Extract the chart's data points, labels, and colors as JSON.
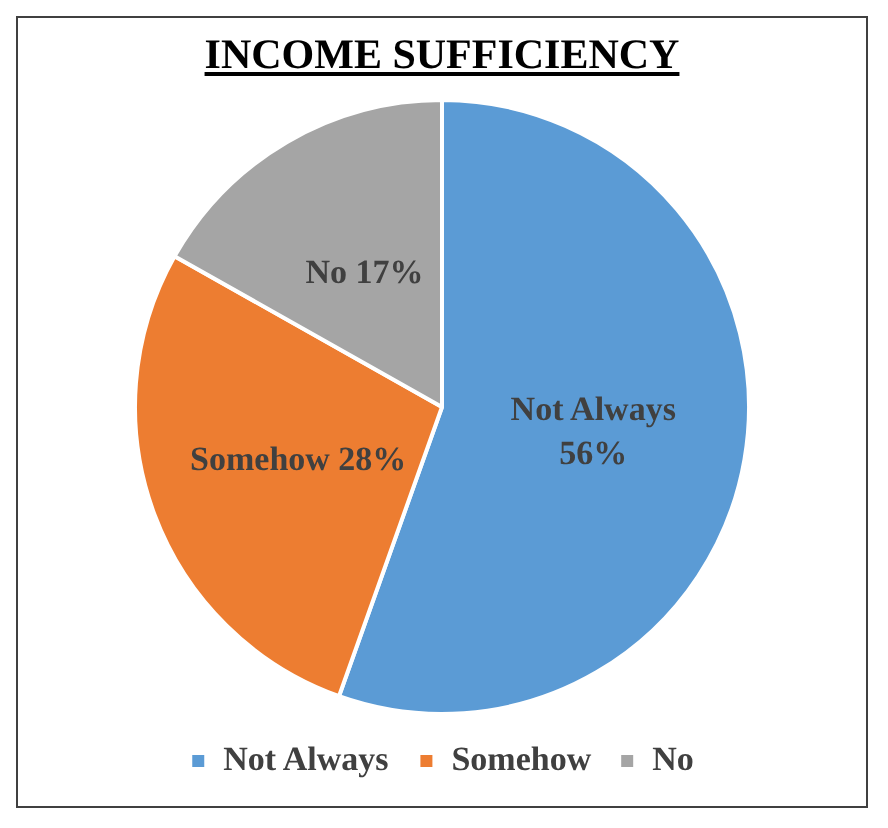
{
  "chart_data": {
    "type": "pie",
    "title": "INCOME SUFFICIENCY",
    "categories": [
      "Not Always",
      "Somehow",
      "No"
    ],
    "values": [
      56,
      28,
      17
    ],
    "colors": [
      "#5b9bd5",
      "#ed7d31",
      "#a5a5a5"
    ],
    "value_labels": [
      "Not Always\n56%",
      "Somehow 28%",
      "No 17%"
    ],
    "legend": "bottom"
  }
}
